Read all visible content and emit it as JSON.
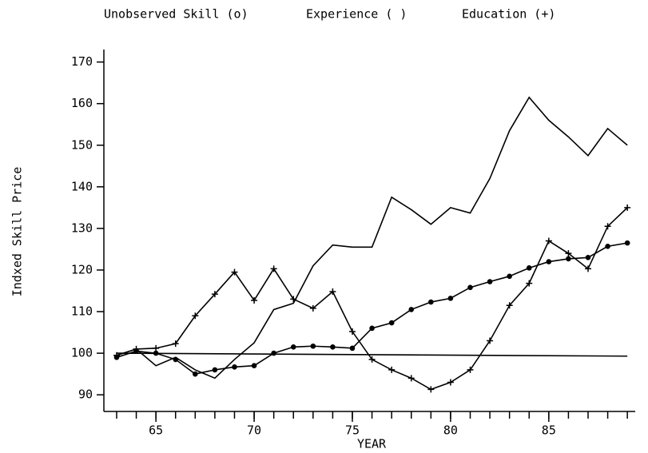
{
  "chart_data": {
    "type": "line",
    "y_label": "Indxed Skill Price",
    "x_label": "YEAR",
    "x": [
      63,
      64,
      65,
      66,
      67,
      68,
      69,
      70,
      71,
      72,
      73,
      74,
      75,
      76,
      77,
      78,
      79,
      80,
      81,
      82,
      83,
      84,
      85,
      86,
      87,
      88,
      89
    ],
    "series": [
      {
        "name": "Unobserved Skill (o)",
        "color": "#000000",
        "marker": "dot",
        "values": [
          99,
          100.5,
          100,
          98.5,
          95,
          96,
          96.7,
          97,
          100,
          101.5,
          101.7,
          101.5,
          101.2,
          106,
          107.3,
          110.5,
          112.3,
          113.2,
          115.8,
          117.2,
          118.5,
          120.5,
          122,
          122.7,
          123,
          125.7,
          126.5
        ]
      },
      {
        "name": "Experience ( )",
        "color": "#000000",
        "marker": "none",
        "values": [
          99.5,
          101,
          97,
          99,
          96,
          94,
          98.5,
          102.5,
          110.5,
          112,
          121,
          126,
          125.5,
          125.5,
          137.5,
          134.5,
          131,
          135,
          133.7,
          142,
          153.5,
          161.5,
          156,
          152,
          147.5,
          154,
          150
        ]
      },
      {
        "name": "Education (+)",
        "color": "#000000",
        "marker": "plus",
        "values": [
          99.5,
          101,
          101.2,
          102.3,
          109,
          114.2,
          119.5,
          112.7,
          120.3,
          113,
          110.8,
          114.8,
          105.2,
          98.5,
          96,
          94,
          91.3,
          93,
          96,
          103,
          111.5,
          116.8,
          127,
          124,
          120.3,
          130.5,
          135
        ]
      }
    ],
    "baseline": {
      "x": [
        63,
        89
      ],
      "values": [
        100,
        99.3
      ],
      "color": "#000000"
    },
    "xlim": [
      62.35,
      89.4
    ],
    "ylim": [
      86,
      173
    ],
    "xticks": [
      65,
      70,
      75,
      80,
      85
    ],
    "xminorticks": [
      63,
      64,
      65,
      66,
      67,
      68,
      69,
      70,
      71,
      72,
      73,
      74,
      75,
      76,
      77,
      78,
      79,
      80,
      81,
      82,
      83,
      84,
      85,
      86,
      87,
      88,
      89
    ],
    "yticks": [
      90,
      100,
      110,
      120,
      130,
      140,
      150,
      160,
      170
    ],
    "grid": false
  }
}
